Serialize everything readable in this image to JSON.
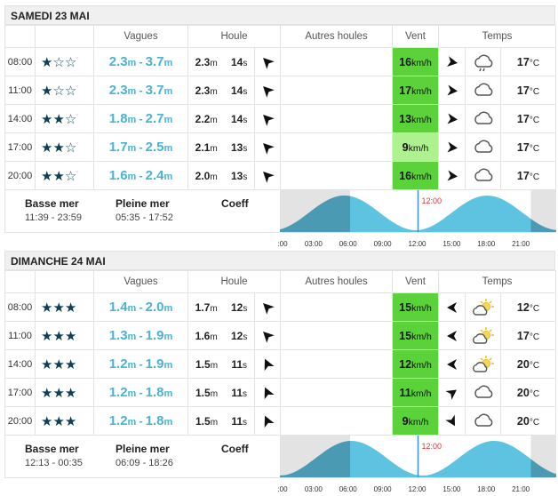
{
  "headers": {
    "vagues": "Vagues",
    "houle": "Houle",
    "autres_houles": "Autres houles",
    "vent": "Vent",
    "temps": "Temps"
  },
  "tide_labels": {
    "low": "Basse mer",
    "high": "Pleine mer",
    "coeff": "Coeff"
  },
  "tide_ticks": [
    ":00",
    "03:00",
    "06:00",
    "09:00",
    "12:00",
    "15:00",
    "18:00",
    "21:00"
  ],
  "days": [
    {
      "title": "SAMEDI 23 MAI",
      "low_times": "11:39 - 23:59",
      "high_times": "05:35 - 17:52",
      "coeff": "",
      "now_label": "12:00",
      "rows": [
        {
          "time": "08:00",
          "stars": 1,
          "wmin": "2.3",
          "wmax": "3.7",
          "sh": "2.3",
          "sp": "14",
          "wind": "16",
          "wind_level": "strong",
          "weather_icon": "cloud-rain-icon",
          "temp": "17"
        },
        {
          "time": "11:00",
          "stars": 1,
          "wmin": "2.3",
          "wmax": "3.7",
          "sh": "2.3",
          "sp": "14",
          "wind": "17",
          "wind_level": "strong",
          "weather_icon": "cloud-icon",
          "temp": "17"
        },
        {
          "time": "14:00",
          "stars": 2,
          "wmin": "1.8",
          "wmax": "2.7",
          "sh": "2.2",
          "sp": "14",
          "wind": "13",
          "wind_level": "strong",
          "weather_icon": "cloud-icon",
          "temp": "17"
        },
        {
          "time": "17:00",
          "stars": 2,
          "wmin": "1.7",
          "wmax": "2.5",
          "sh": "2.1",
          "sp": "13",
          "wind": "9",
          "wind_level": "light",
          "weather_icon": "cloud-icon",
          "temp": "17"
        },
        {
          "time": "20:00",
          "stars": 2,
          "wmin": "1.6",
          "wmax": "2.4",
          "sh": "2.0",
          "sp": "13",
          "wind": "16",
          "wind_level": "strong",
          "weather_icon": "cloud-icon",
          "temp": "17"
        }
      ]
    },
    {
      "title": "DIMANCHE 24 MAI",
      "low_times": "12:13 - 00:35",
      "high_times": "06:09 - 18:26",
      "coeff": "",
      "now_label": "12:00",
      "rows": [
        {
          "time": "08:00",
          "stars": 3,
          "wmin": "1.4",
          "wmax": "2.0",
          "sh": "1.7",
          "sp": "12",
          "wind": "15",
          "wind_level": "strong",
          "weather_icon": "sun-cloud-icon",
          "temp": "12"
        },
        {
          "time": "11:00",
          "stars": 3,
          "wmin": "1.3",
          "wmax": "1.9",
          "sh": "1.6",
          "sp": "12",
          "wind": "15",
          "wind_level": "strong",
          "weather_icon": "sun-cloud-icon",
          "temp": "17"
        },
        {
          "time": "14:00",
          "stars": 3,
          "wmin": "1.2",
          "wmax": "1.9",
          "sh": "1.5",
          "sp": "11",
          "wind": "12",
          "wind_level": "strong",
          "weather_icon": "sun-cloud-icon",
          "temp": "20"
        },
        {
          "time": "17:00",
          "stars": 3,
          "wmin": "1.2",
          "wmax": "1.8",
          "sh": "1.5",
          "sp": "11",
          "wind": "11",
          "wind_level": "strong",
          "weather_icon": "cloud-icon",
          "temp": "20"
        },
        {
          "time": "20:00",
          "stars": 3,
          "wmin": "1.2",
          "wmax": "1.8",
          "sh": "1.5",
          "sp": "11",
          "wind": "9",
          "wind_level": "strong",
          "weather_icon": "cloud-icon",
          "temp": "20"
        }
      ]
    }
  ],
  "units": {
    "m": "m",
    "s": "s",
    "kmh": "km/h",
    "deg": "°C"
  },
  "colors": {
    "wave": "#49b3d5",
    "wind_strong": "#5cd23a",
    "wind_light": "#adf28e",
    "tide": "#5ec3e0",
    "tide_dark": "#4a9ab3",
    "night": "#aaaaaa",
    "now_line": "#3a8fd8",
    "now_label": "#e03030",
    "star": "#0c3e54"
  }
}
